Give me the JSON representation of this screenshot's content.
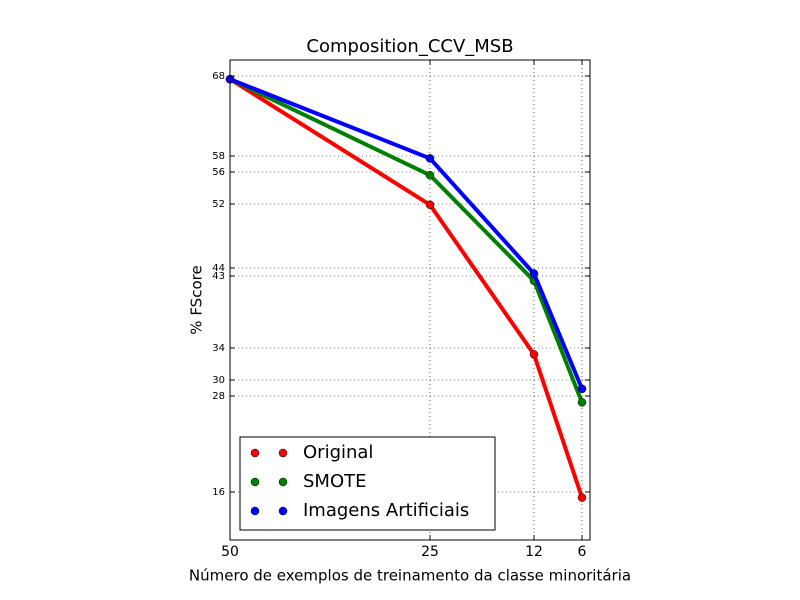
{
  "chart_data": {
    "type": "line",
    "title": "Composition_CCV_MSB",
    "x_label": "Número de exemplos de treinamento da classe minoritária",
    "y_label": "% FScore",
    "x": [
      50,
      25,
      12,
      6
    ],
    "series": [
      {
        "name": "Original",
        "color": "#ff0000",
        "values": [
          67.6,
          51.9,
          33.2,
          15.3
        ]
      },
      {
        "name": "SMOTE",
        "color": "#008000",
        "values": [
          67.6,
          55.6,
          42.4,
          27.2
        ]
      },
      {
        "name": "Imagens Artificiais",
        "color": "#0000ff",
        "values": [
          67.6,
          57.7,
          43.3,
          28.9
        ]
      }
    ],
    "xlim": [
      50,
      5
    ],
    "ylim": [
      10,
      70
    ],
    "xticks": [
      50,
      25,
      12,
      6
    ],
    "yticks": [
      16,
      28,
      30,
      34,
      43,
      44,
      52,
      56,
      58,
      68
    ],
    "grid": true,
    "legend": "lower left"
  }
}
